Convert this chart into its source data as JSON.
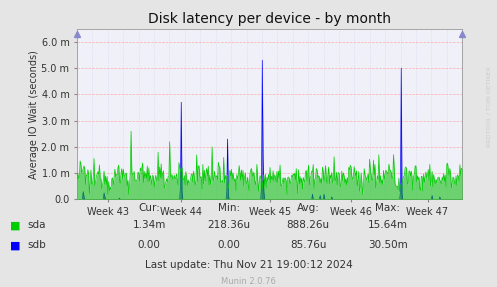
{
  "title": "Disk latency per device - by month",
  "ylabel": "Average IO Wait (seconds)",
  "background_color": "#e5e5e5",
  "plot_bg_color": "#f0f0f8",
  "sda_color": "#00cc00",
  "sdb_color": "#0000ff",
  "x_tick_labels": [
    "Week 43",
    "Week 44",
    "Week 45",
    "Week 46",
    "Week 47"
  ],
  "ytick_labels": [
    "0.0",
    "1.0 m",
    "2.0 m",
    "3.0 m",
    "4.0 m",
    "5.0 m",
    "6.0 m"
  ],
  "ylim_max": 6.5,
  "stats_header": [
    "Cur:",
    "Min:",
    "Avg:",
    "Max:"
  ],
  "stats_sda": [
    "1.34m",
    "218.36u",
    "888.26u",
    "15.64m"
  ],
  "stats_sdb": [
    "0.00",
    "0.00",
    "85.76u",
    "30.50m"
  ],
  "last_update": "Last update: Thu Nov 21 19:00:12 2024",
  "munin_version": "Munin 2.0.76",
  "watermark": "RRDTOOL / TOBI OETIKER"
}
